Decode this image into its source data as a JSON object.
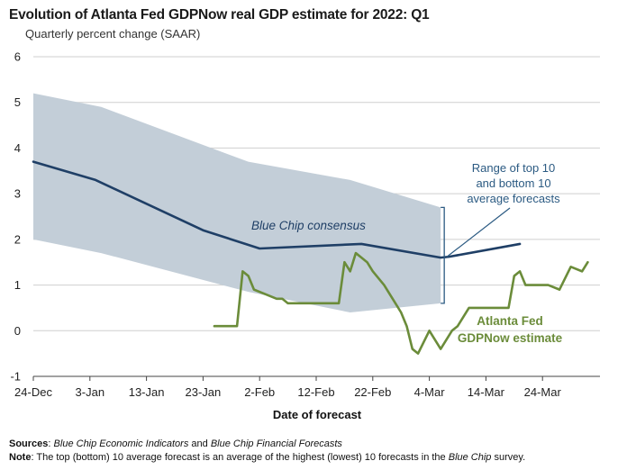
{
  "chart_data": {
    "type": "line",
    "title": "Evolution of Atlanta Fed GDPNow real GDP estimate for 2022: Q1",
    "subtitle": "Quarterly percent change (SAAR)",
    "xlabel": "Date of forecast",
    "ylabel": "",
    "ylim": [
      -1,
      6
    ],
    "yticks": [
      "6",
      "5",
      "4",
      "3",
      "2",
      "1",
      "0",
      "-1"
    ],
    "ytick_values": [
      6,
      5,
      4,
      3,
      2,
      1,
      0,
      -1
    ],
    "xticks": [
      "24-Dec",
      "3-Jan",
      "13-Jan",
      "23-Jan",
      "2-Feb",
      "12-Feb",
      "22-Feb",
      "4-Mar",
      "14-Mar",
      "24-Mar"
    ],
    "xtick_days": [
      0,
      10,
      20,
      30,
      40,
      50,
      60,
      70,
      80,
      90
    ],
    "grid": true,
    "band": {
      "name": "Range of top 10 and bottom 10 average forecasts",
      "x": [
        0,
        12,
        38,
        56,
        72
      ],
      "upper": [
        5.2,
        4.9,
        3.7,
        3.3,
        2.7
      ],
      "lower": [
        2.0,
        1.7,
        0.85,
        0.4,
        0.6
      ]
    },
    "series": [
      {
        "name": "Blue Chip consensus",
        "color": "#1f3f66",
        "x": [
          0,
          11,
          30,
          40,
          58,
          72,
          73.5,
          86
        ],
        "y": [
          3.7,
          3.3,
          2.2,
          1.8,
          1.9,
          1.6,
          1.62,
          1.9
        ]
      },
      {
        "name": "Atlanta Fed GDPNow estimate",
        "color": "#6b8c3a",
        "x": [
          32,
          36,
          37,
          38,
          39,
          41,
          43,
          44,
          45,
          46,
          47,
          48,
          49,
          50,
          51,
          52,
          54,
          55,
          56,
          57,
          58,
          59,
          60,
          62,
          64,
          65,
          66,
          67,
          68,
          70,
          72,
          74,
          75,
          76,
          77,
          78,
          79,
          80,
          83,
          84,
          85,
          86,
          87,
          88,
          89,
          90,
          91,
          93,
          95,
          97,
          98
        ],
        "y": [
          0.1,
          0.1,
          1.3,
          1.2,
          0.9,
          0.8,
          0.7,
          0.7,
          0.6,
          0.6,
          0.6,
          0.6,
          0.6,
          0.6,
          0.6,
          0.6,
          0.6,
          1.5,
          1.3,
          1.7,
          1.6,
          1.5,
          1.3,
          1.0,
          0.6,
          0.4,
          0.1,
          -0.4,
          -0.5,
          0.0,
          -0.4,
          0.0,
          0.1,
          0.3,
          0.5,
          0.5,
          0.5,
          0.5,
          0.5,
          0.5,
          1.2,
          1.3,
          1.0,
          1.0,
          1.0,
          1.0,
          1.0,
          0.9,
          1.4,
          1.3,
          1.5
        ]
      }
    ],
    "annotations": {
      "range_label": [
        "Range of top 10",
        "and bottom 10",
        "average forecasts"
      ],
      "bluechip_label": "Blue Chip consensus",
      "gdpnow_label": [
        "Atlanta Fed",
        "GDPNow estimate"
      ]
    },
    "colors": {
      "band": "#c3ced8",
      "bluechip": "#1f3f66",
      "gdpnow": "#6b8c3a",
      "grid": "#cfcfcf",
      "annotation_blue": "#2b5a82"
    }
  },
  "footer": {
    "sources_label": "Sources",
    "sources_text_1": "Blue Chip Economic Indicators",
    "sources_text_2": " and ",
    "sources_text_3": "Blue Chip Financial Forecasts",
    "note_label": "Note",
    "note_text_1": ": The top (bottom) 10 average forecast is an average of the highest (lowest) 10 forecasts in the ",
    "note_text_2": "Blue Chip",
    "note_text_3": " survey."
  }
}
